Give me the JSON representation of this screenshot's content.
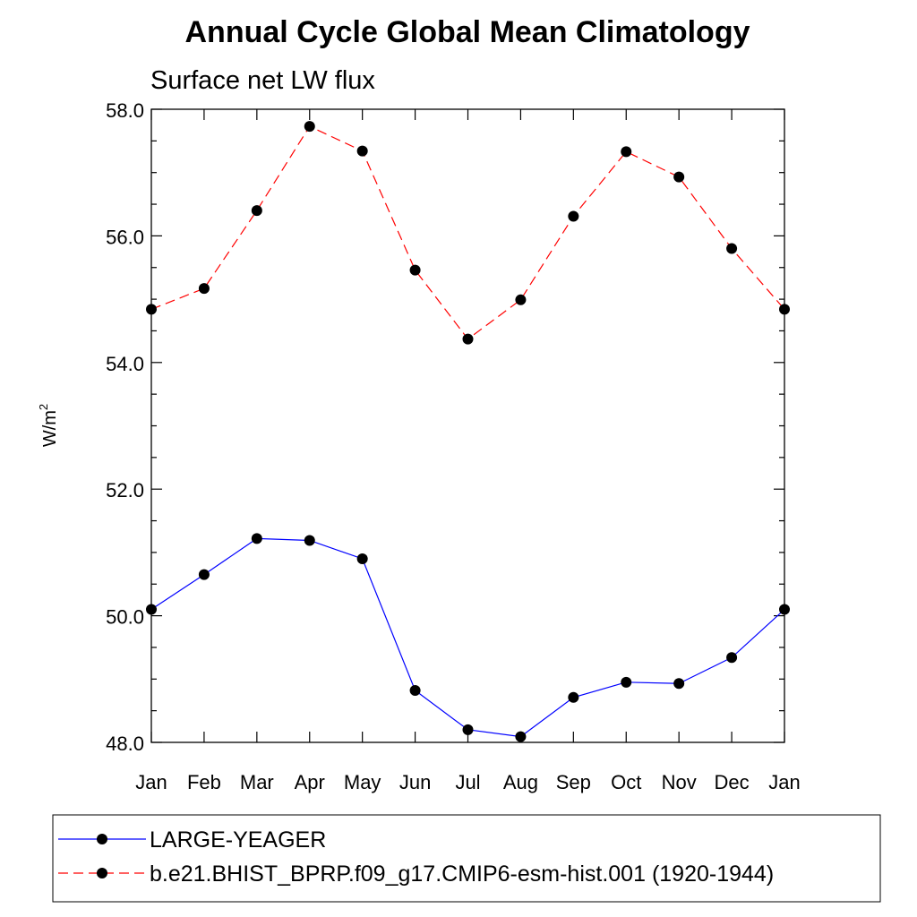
{
  "chart_data": {
    "type": "line",
    "title": "Annual Cycle Global Mean Climatology",
    "subtitle": "Surface net LW flux",
    "xlabel": "",
    "ylabel": "W/m",
    "ylabel_sup": "2",
    "categories": [
      "Jan",
      "Feb",
      "Mar",
      "Apr",
      "May",
      "Jun",
      "Jul",
      "Aug",
      "Sep",
      "Oct",
      "Nov",
      "Dec",
      "Jan"
    ],
    "ylim": [
      48.0,
      58.0
    ],
    "yticks": [
      "48.0",
      "50.0",
      "52.0",
      "54.0",
      "56.0",
      "58.0"
    ],
    "series": [
      {
        "name": "LARGE-YEAGER",
        "color": "#0000ff",
        "line_style": "solid",
        "marker": "filled-circle",
        "values": [
          50.1,
          50.65,
          51.22,
          51.19,
          50.9,
          48.82,
          48.2,
          48.09,
          48.71,
          48.95,
          48.93,
          49.34,
          50.1
        ]
      },
      {
        "name": "b.e21.BHIST_BPRP.f09_g17.CMIP6-esm-hist.001 (1920-1944)",
        "color": "#ff0000",
        "line_style": "dashed",
        "marker": "filled-circle",
        "values": [
          54.84,
          55.17,
          56.4,
          57.73,
          57.34,
          55.46,
          54.37,
          54.99,
          56.31,
          57.33,
          56.93,
          55.8,
          54.84
        ]
      }
    ],
    "grid": false,
    "legend_position": "bottom"
  }
}
